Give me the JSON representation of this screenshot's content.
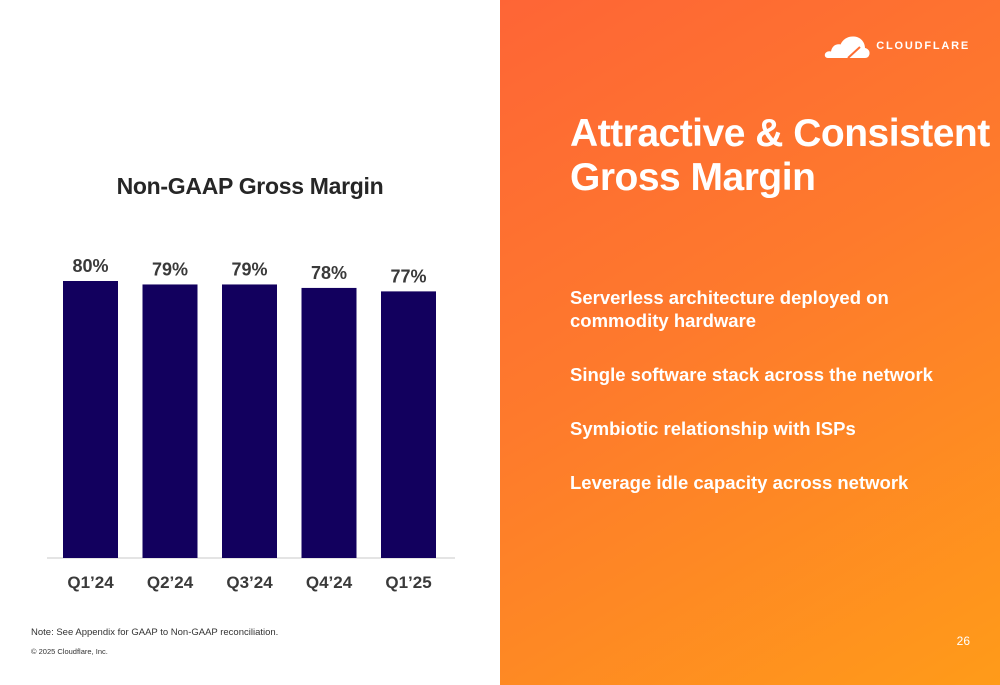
{
  "brand": {
    "logo_text": "CLOUDFLARE",
    "logo_icon": "cloud-icon"
  },
  "headline": {
    "line1": "Attractive & Consistent",
    "line2": "Gross Margin"
  },
  "bullets": [
    {
      "line1": "Serverless architecture deployed on",
      "line2": "commodity hardware"
    },
    {
      "line1": "Single software stack across the network"
    },
    {
      "line1": "Symbiotic relationship with ISPs"
    },
    {
      "line1": "Leverage idle capacity across network"
    }
  ],
  "footer": {
    "note": "Note: See Appendix for GAAP to Non-GAAP reconciliation.",
    "copyright": "© 2025 Cloudflare, Inc.",
    "page_number": "26"
  },
  "colors": {
    "bar": "#12005e",
    "gradient_start": "#fe6536",
    "gradient_end": "#ff9b19",
    "text_dark": "#262626"
  },
  "chart_data": {
    "type": "bar",
    "title": "Non-GAAP Gross Margin",
    "categories": [
      "Q1’24",
      "Q2’24",
      "Q3’24",
      "Q4’24",
      "Q1’25"
    ],
    "values": [
      80,
      79,
      79,
      78,
      77
    ],
    "data_labels": [
      "80%",
      "79%",
      "79%",
      "78%",
      "77%"
    ],
    "ylim": [
      0,
      80
    ],
    "xlabel": "",
    "ylabel": "",
    "grid": false,
    "legend": "none"
  }
}
